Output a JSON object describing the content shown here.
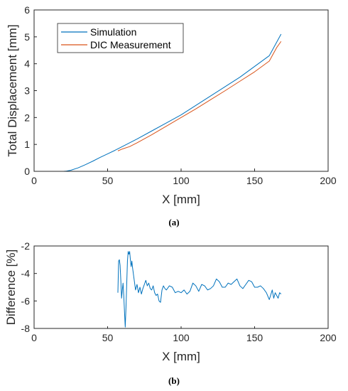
{
  "colors": {
    "simulation": "#0072BD",
    "dic": "#D95319",
    "axis": "#262626"
  },
  "chart_data": [
    {
      "type": "line",
      "caption": "(a)",
      "xlabel": "X [mm]",
      "ylabel": "Total Displacement [mm]",
      "xlim": [
        0,
        200
      ],
      "ylim": [
        0,
        6
      ],
      "xticks": [
        "0",
        "50",
        "100",
        "150",
        "200"
      ],
      "yticks": [
        "0",
        "1",
        "2",
        "3",
        "4",
        "5",
        "6"
      ],
      "grid": false,
      "legend_position": "top-left",
      "series": [
        {
          "name": "Simulation",
          "color": "#0072BD",
          "x": [
            10,
            15,
            20,
            22,
            25,
            30,
            35,
            40,
            45,
            50,
            55,
            60,
            70,
            80,
            90,
            100,
            110,
            120,
            130,
            140,
            150,
            160,
            168
          ],
          "y": [
            0,
            0,
            0,
            0.01,
            0.04,
            0.13,
            0.25,
            0.38,
            0.52,
            0.65,
            0.78,
            0.92,
            1.2,
            1.5,
            1.8,
            2.1,
            2.45,
            2.8,
            3.15,
            3.5,
            3.9,
            4.3,
            5.1
          ]
        },
        {
          "name": "DIC Measurement",
          "color": "#D95319",
          "x": [
            57,
            60,
            65,
            70,
            80,
            90,
            100,
            110,
            120,
            130,
            140,
            150,
            160,
            165,
            168
          ],
          "y": [
            0.76,
            0.83,
            0.92,
            1.06,
            1.36,
            1.68,
            2.0,
            2.32,
            2.66,
            3.0,
            3.35,
            3.7,
            4.1,
            4.6,
            4.83
          ]
        }
      ]
    },
    {
      "type": "line",
      "caption": "(b)",
      "xlabel": "X [mm]",
      "ylabel": "Difference [%]",
      "xlim": [
        0,
        200
      ],
      "ylim": [
        -8,
        -2
      ],
      "xticks": [
        "0",
        "50",
        "100",
        "150",
        "200"
      ],
      "yticks": [
        "-8",
        "-6",
        "-4",
        "-2"
      ],
      "grid": false,
      "series": [
        {
          "color": "#0072BD",
          "x": [
            57,
            57.5,
            58,
            58.5,
            59,
            59.5,
            60,
            60.5,
            61,
            61.5,
            62,
            62.5,
            63,
            63.5,
            64,
            64.5,
            65,
            65.5,
            66,
            66.5,
            67,
            68,
            69,
            70,
            71,
            72,
            73,
            74,
            75,
            76,
            77,
            78,
            79,
            80,
            81,
            82,
            83,
            84,
            85,
            86,
            87,
            88,
            89,
            90,
            92,
            94,
            96,
            98,
            100,
            102,
            104,
            106,
            108,
            110,
            112,
            114,
            116,
            118,
            120,
            122,
            124,
            126,
            128,
            130,
            132,
            134,
            136,
            138,
            140,
            142,
            144,
            146,
            148,
            150,
            152,
            154,
            156,
            158,
            160,
            162,
            163,
            164,
            165,
            166,
            167,
            168
          ],
          "y": [
            -5.4,
            -3.1,
            -3.0,
            -3.4,
            -4.5,
            -5.8,
            -5.2,
            -4.7,
            -5.6,
            -6.8,
            -7.9,
            -6.5,
            -4.8,
            -3.1,
            -2.4,
            -2.6,
            -2.4,
            -3.0,
            -3.5,
            -3.1,
            -3.6,
            -4.4,
            -5.2,
            -4.8,
            -5.4,
            -5.0,
            -5.5,
            -5.1,
            -4.8,
            -4.5,
            -4.9,
            -4.7,
            -5.1,
            -5.2,
            -4.9,
            -5.4,
            -5.6,
            -5.5,
            -6.0,
            -6.1,
            -5.2,
            -4.9,
            -5.1,
            -5.2,
            -4.9,
            -5.0,
            -5.4,
            -5.3,
            -5.4,
            -5.2,
            -5.5,
            -5.3,
            -4.7,
            -4.9,
            -5.3,
            -4.8,
            -4.9,
            -5.2,
            -5.1,
            -4.9,
            -4.4,
            -4.6,
            -5.0,
            -5.0,
            -4.7,
            -4.8,
            -4.6,
            -4.4,
            -4.9,
            -5.1,
            -4.8,
            -4.5,
            -4.6,
            -5.0,
            -5.0,
            -4.9,
            -5.1,
            -5.4,
            -5.9,
            -5.2,
            -5.8,
            -5.4,
            -5.6,
            -5.8,
            -5.4,
            -5.5
          ]
        }
      ]
    }
  ]
}
